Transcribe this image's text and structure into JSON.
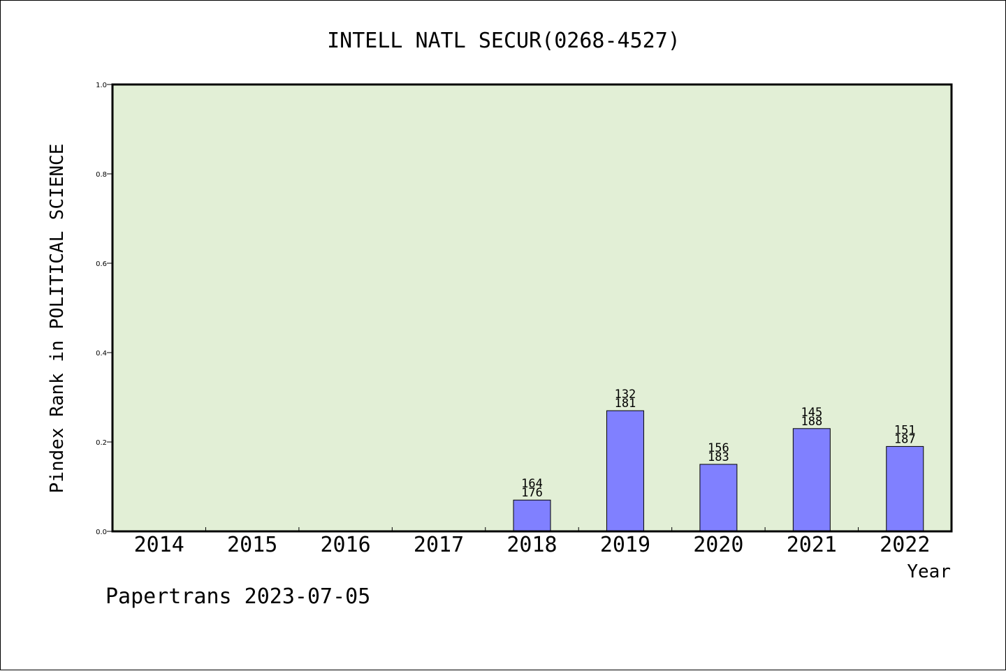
{
  "chart_data": {
    "type": "bar",
    "title": "INTELL NATL SECUR(0268-4527)",
    "xlabel": "Year",
    "ylabel": "Pindex Rank in POLITICAL SCIENCE",
    "ylim": [
      0,
      1.0
    ],
    "yticks": [
      "0.0",
      "0.2",
      "0.4",
      "0.6",
      "0.8",
      "1.0"
    ],
    "categories": [
      "2014",
      "2015",
      "2016",
      "2017",
      "2018",
      "2019",
      "2020",
      "2021",
      "2022"
    ],
    "values": [
      null,
      null,
      null,
      null,
      0.07,
      0.27,
      0.15,
      0.23,
      0.19
    ],
    "rank_labels": [
      null,
      null,
      null,
      null,
      "164",
      "132",
      "156",
      "145",
      "151"
    ],
    "total_labels": [
      null,
      null,
      null,
      null,
      "176",
      "181",
      "183",
      "188",
      "187"
    ],
    "grid": false,
    "plot_background": "#e2efd6",
    "bar_color": "#8080ff"
  },
  "footer": "Papertrans 2023-07-05"
}
